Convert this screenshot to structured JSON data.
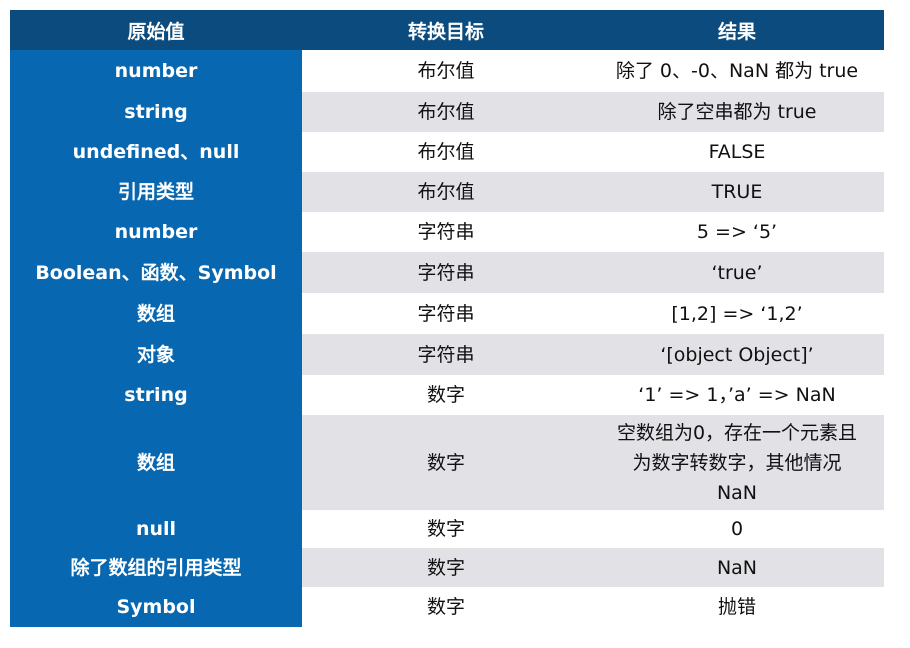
{
  "header": [
    "原始值",
    "转换目标",
    "结果"
  ],
  "rows": [
    {
      "original": "number",
      "target": "布尔值",
      "result": "除了 0、-0、NaN 都为 true"
    },
    {
      "original": "string",
      "target": "布尔值",
      "result": "除了空串都为 true"
    },
    {
      "original": "undefined、null",
      "target": "布尔值",
      "result": "FALSE"
    },
    {
      "original": "引用类型",
      "target": "布尔值",
      "result": "TRUE"
    },
    {
      "original": "number",
      "target": "字符串",
      "result": "5 => ‘5’"
    },
    {
      "original": "Boolean、函数、Symbol",
      "target": "字符串",
      "result": "‘true’"
    },
    {
      "original": "数组",
      "target": "字符串",
      "result": "[1,2] => ‘1,2’"
    },
    {
      "original": "对象",
      "target": "字符串",
      "result": "‘[object Object]’"
    },
    {
      "original": "string",
      "target": "数字",
      "result": "‘1’ => 1，’a’ => NaN"
    },
    {
      "original": "数组",
      "target": "数字",
      "result": "空数组为0，存在一个元素且为数字转数字，其他情况NaN"
    },
    {
      "original": "null",
      "target": "数字",
      "result": "0"
    },
    {
      "original": "除了数组的引用类型",
      "target": "数字",
      "result": "NaN"
    },
    {
      "original": "Symbol",
      "target": "数字",
      "result": "抛错"
    }
  ],
  "colors": {
    "header": "#0c4b7d",
    "first_column": "#0767b1",
    "stripe": "#e1e1e6"
  }
}
